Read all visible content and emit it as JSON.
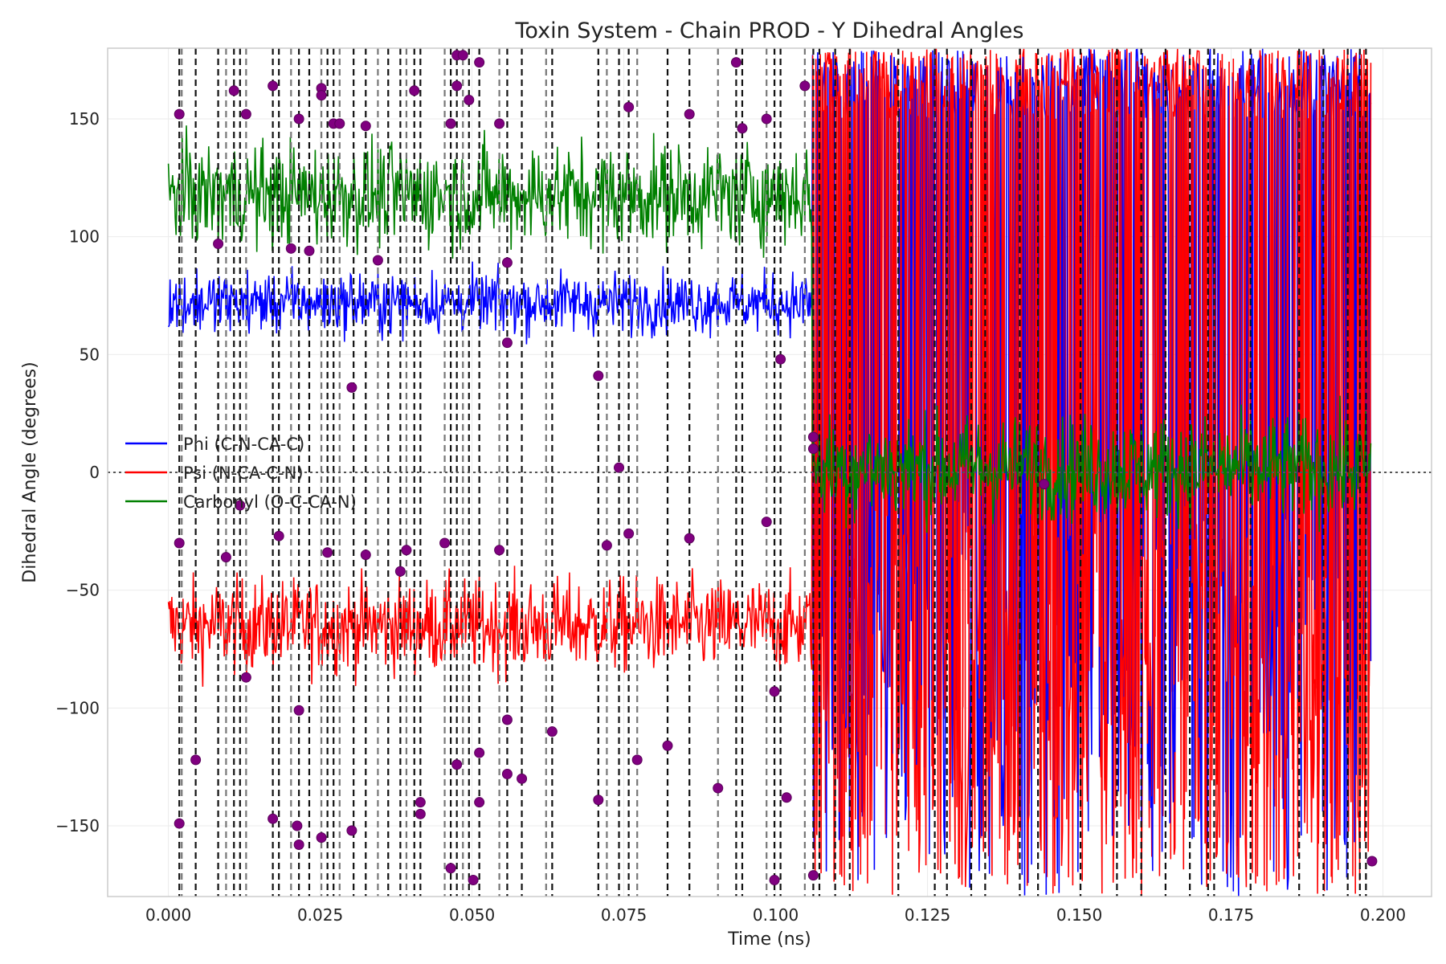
{
  "chart_data": {
    "type": "line",
    "title": "Toxin System - Chain PROD - Y Dihedral Angles",
    "xlabel": "Time (ns)",
    "ylabel": "Dihedral Angle (degrees)",
    "xlim": [
      -0.01,
      0.208
    ],
    "ylim": [
      -180,
      180
    ],
    "x_ticks": [
      0.0,
      0.025,
      0.05,
      0.075,
      0.1,
      0.125,
      0.15,
      0.175,
      0.2
    ],
    "x_tick_labels": [
      "0.000",
      "0.025",
      "0.050",
      "0.075",
      "0.100",
      "0.125",
      "0.150",
      "0.175",
      "0.200"
    ],
    "y_ticks": [
      -150,
      -100,
      -50,
      0,
      50,
      100,
      150
    ],
    "y_tick_labels": [
      "−150",
      "−100",
      "−50",
      "0",
      "50",
      "100",
      "150"
    ],
    "grid": true,
    "zero_line": true,
    "legend_position": "center-left",
    "series": [
      {
        "name": "Phi (C-N-CA-C)",
        "color": "#0000ff",
        "segments": [
          {
            "x_range": [
              0.0,
              0.106
            ],
            "mean": 72,
            "sd": 7
          },
          {
            "x_range": [
              0.106,
              0.198
            ],
            "mean": 0,
            "sd": 0,
            "note_style": "hidden"
          }
        ]
      },
      {
        "name": "Psi (N-CA-C-N)",
        "color": "#ff0000",
        "segments": [
          {
            "x_range": [
              0.0,
              0.106
            ],
            "mean": -65,
            "sd": 10
          },
          {
            "x_range": [
              0.106,
              0.198
            ],
            "mean": 0,
            "sd": 175
          }
        ]
      },
      {
        "name": "Carbonyl (O-C-CA-N)",
        "color": "#008000",
        "segments": [
          {
            "x_range": [
              0.0,
              0.106
            ],
            "mean": 118,
            "sd": 12
          },
          {
            "x_range": [
              0.106,
              0.198
            ],
            "mean": 2,
            "sd": 12
          }
        ]
      }
    ],
    "transition_lines_x": [
      0.0018,
      0.0022,
      0.0045,
      0.0082,
      0.0095,
      0.0108,
      0.0118,
      0.0128,
      0.0172,
      0.0182,
      0.0202,
      0.0215,
      0.0232,
      0.0252,
      0.0262,
      0.0272,
      0.0282,
      0.0305,
      0.0325,
      0.0345,
      0.0362,
      0.0382,
      0.0392,
      0.0405,
      0.0415,
      0.0455,
      0.0465,
      0.0475,
      0.0485,
      0.0495,
      0.0512,
      0.0545,
      0.0558,
      0.0582,
      0.0622,
      0.0632,
      0.0708,
      0.0722,
      0.0742,
      0.0758,
      0.0772,
      0.0822,
      0.0858,
      0.0905,
      0.0935,
      0.0945,
      0.0985,
      0.0998,
      0.1008,
      0.1048,
      0.1062,
      0.1072,
      0.1098,
      0.1122,
      0.1202,
      0.1262,
      0.1282,
      0.1322,
      0.1345,
      0.1402,
      0.1432,
      0.1502,
      0.1562,
      0.1602,
      0.1642,
      0.1682,
      0.1712,
      0.1722,
      0.1782,
      0.1862,
      0.1902,
      0.1942,
      0.1962,
      0.1972
    ],
    "transition_markers": [
      [
        0.0018,
        152
      ],
      [
        0.0018,
        -30
      ],
      [
        0.0018,
        -149
      ],
      [
        0.0045,
        -122
      ],
      [
        0.0082,
        97
      ],
      [
        0.0095,
        -36
      ],
      [
        0.0108,
        162
      ],
      [
        0.0118,
        -14
      ],
      [
        0.0128,
        152
      ],
      [
        0.0128,
        -87
      ],
      [
        0.0172,
        164
      ],
      [
        0.0182,
        -27
      ],
      [
        0.0172,
        -147
      ],
      [
        0.0202,
        95
      ],
      [
        0.0212,
        -150
      ],
      [
        0.0215,
        -158
      ],
      [
        0.0215,
        -101
      ],
      [
        0.0215,
        150
      ],
      [
        0.0232,
        94
      ],
      [
        0.0252,
        163
      ],
      [
        0.0252,
        160
      ],
      [
        0.0252,
        -155
      ],
      [
        0.0262,
        -34
      ],
      [
        0.0272,
        148
      ],
      [
        0.0282,
        148
      ],
      [
        0.0302,
        -152
      ],
      [
        0.0302,
        36
      ],
      [
        0.0325,
        147
      ],
      [
        0.0325,
        -35
      ],
      [
        0.0345,
        90
      ],
      [
        0.0382,
        -42
      ],
      [
        0.0392,
        -33
      ],
      [
        0.0405,
        162
      ],
      [
        0.0415,
        -140
      ],
      [
        0.0415,
        -145
      ],
      [
        0.0455,
        -30
      ],
      [
        0.0465,
        148
      ],
      [
        0.0465,
        -168
      ],
      [
        0.0475,
        177
      ],
      [
        0.0485,
        177
      ],
      [
        0.0475,
        -124
      ],
      [
        0.0475,
        164
      ],
      [
        0.0495,
        158
      ],
      [
        0.0502,
        -173
      ],
      [
        0.0512,
        -140
      ],
      [
        0.0512,
        -119
      ],
      [
        0.0512,
        174
      ],
      [
        0.0545,
        148
      ],
      [
        0.0545,
        -33
      ],
      [
        0.0558,
        89
      ],
      [
        0.0558,
        55
      ],
      [
        0.0558,
        -105
      ],
      [
        0.0558,
        -128
      ],
      [
        0.0582,
        -130
      ],
      [
        0.0632,
        -110
      ],
      [
        0.0708,
        41
      ],
      [
        0.0708,
        -139
      ],
      [
        0.0722,
        -31
      ],
      [
        0.0742,
        2
      ],
      [
        0.0758,
        -26
      ],
      [
        0.0758,
        155
      ],
      [
        0.0772,
        -122
      ],
      [
        0.0822,
        -116
      ],
      [
        0.0858,
        152
      ],
      [
        0.0858,
        -28
      ],
      [
        0.0905,
        -134
      ],
      [
        0.0935,
        174
      ],
      [
        0.0945,
        146
      ],
      [
        0.0985,
        150
      ],
      [
        0.0985,
        -21
      ],
      [
        0.0998,
        -173
      ],
      [
        0.0998,
        -93
      ],
      [
        0.1008,
        48
      ],
      [
        0.1018,
        -138
      ],
      [
        0.1048,
        164
      ],
      [
        0.1062,
        15
      ],
      [
        0.1062,
        10
      ],
      [
        0.1062,
        -171
      ],
      [
        0.1442,
        -5
      ],
      [
        0.1982,
        -165
      ]
    ]
  }
}
